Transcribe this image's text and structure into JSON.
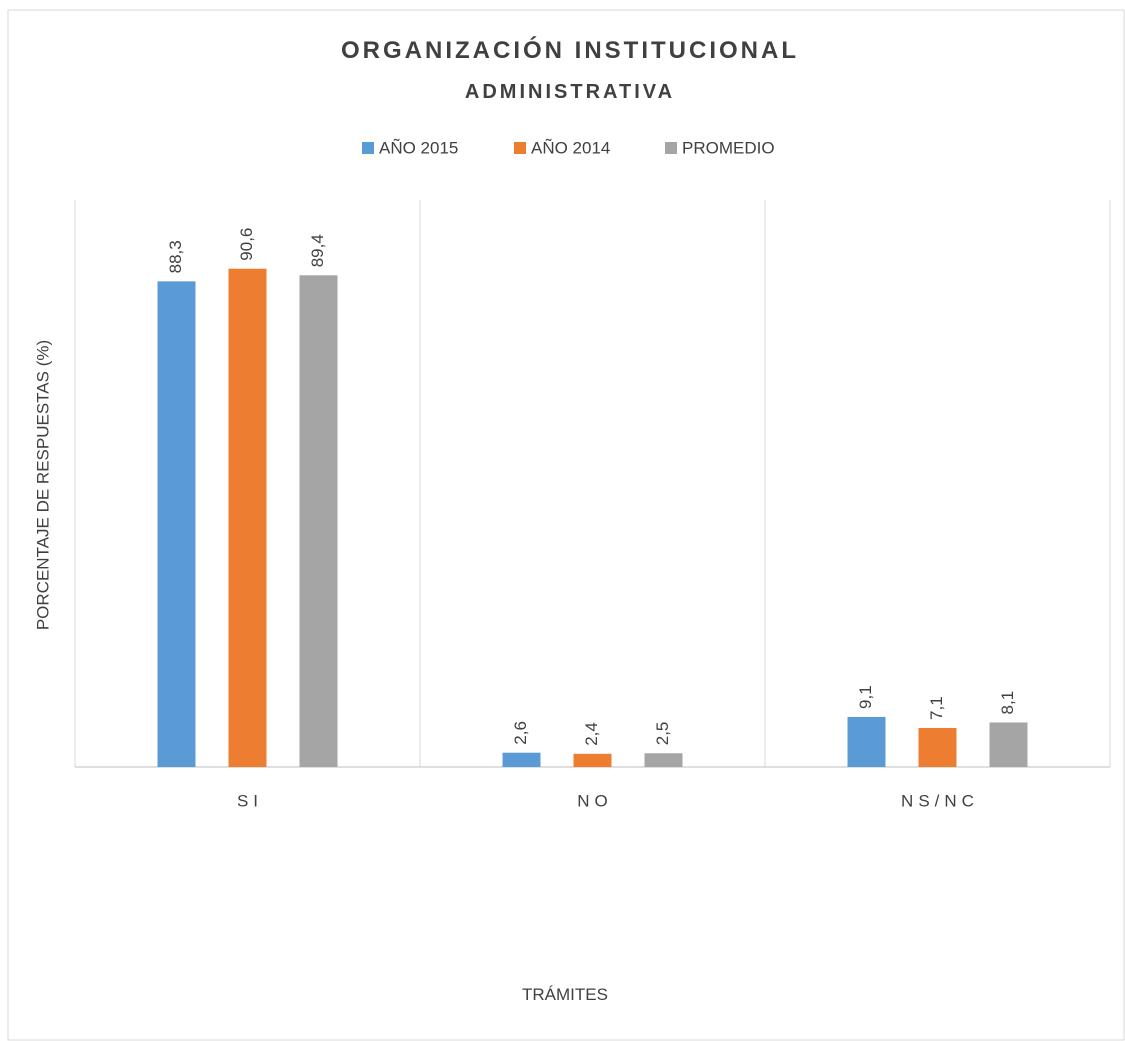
{
  "chart_data": {
    "type": "bar",
    "title": [
      "ORGANIZACIÓN INSTITUCIONAL",
      "ADMINISTRATIVA"
    ],
    "x_label": "TRÁMITES",
    "y_label": "PORCENTAJE DE RESPUESTAS  (%)",
    "categories": [
      "SI",
      "NO",
      "NS/NC"
    ],
    "series": [
      {
        "name": "AÑO 2015",
        "color": "#5b9bd5",
        "values": [
          88.3,
          2.6,
          9.1
        ],
        "value_labels": [
          "88,3",
          "2,6",
          "9,1"
        ]
      },
      {
        "name": "AÑO 2014",
        "color": "#ed7d31",
        "values": [
          90.6,
          2.4,
          7.1
        ],
        "value_labels": [
          "90,6",
          "2,4",
          "7,1"
        ]
      },
      {
        "name": "PROMEDIO",
        "color": "#a5a5a5",
        "values": [
          89.4,
          2.5,
          8.1
        ],
        "value_labels": [
          "89,4",
          "2,5",
          "8,1"
        ]
      }
    ],
    "ylim": [
      0,
      100
    ],
    "legend": "top"
  }
}
